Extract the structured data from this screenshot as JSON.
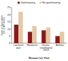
{
  "chart_data": {
    "type": "bar",
    "categories": [
      "Low back pain",
      "Headache",
      "Gastro-esophageal reflux",
      "Asthma"
    ],
    "series": [
      {
        "name": "Gatekeeping",
        "color": "#8b1a1a",
        "values": [
          13,
          8,
          9,
          5
        ]
      },
      {
        "name": "No gatekeeping",
        "color": "#e6c8a6",
        "values": [
          22,
          12,
          11,
          8
        ]
      }
    ],
    "y_label": "Visits to Specialists (% of All Visits)",
    "x_label": "Reason for Visit",
    "ylim": [
      0,
      25
    ],
    "yticks": [
      0,
      5,
      10,
      15,
      20,
      25
    ],
    "legend": "top",
    "grid": false
  }
}
